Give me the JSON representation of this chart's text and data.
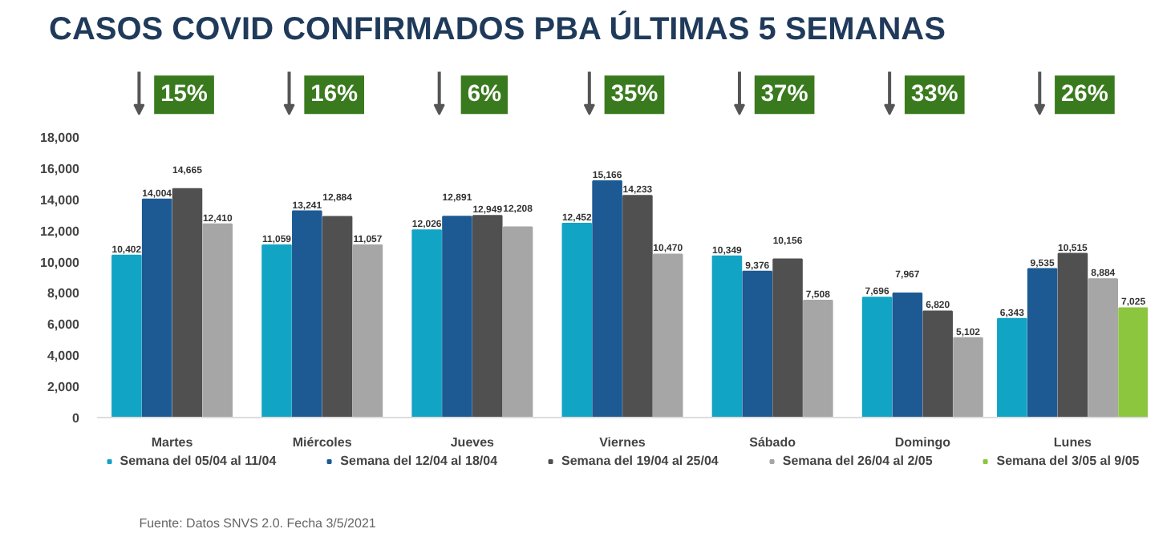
{
  "chart_data": {
    "type": "bar",
    "title": "CASOS COVID CONFIRMADOS PBA ÚLTIMAS 5 SEMANAS",
    "categories": [
      "Martes",
      "Miércoles",
      "Jueves",
      "Viernes",
      "Sábado",
      "Domingo",
      "Lunes"
    ],
    "series": [
      {
        "name": "Semana del 05/04 al 11/04",
        "color": "#12a4c4",
        "values": [
          10402,
          11059,
          12026,
          12452,
          10349,
          7696,
          6343
        ],
        "value_labels": [
          "10,402",
          "11,059",
          "12,026",
          "12,452",
          "10,349",
          "7,696",
          "6,343"
        ]
      },
      {
        "name": "Semana del 12/04 al 18/04",
        "color": "#1d5a94",
        "values": [
          14004,
          13241,
          12891,
          15166,
          9376,
          7967,
          9535
        ],
        "value_labels": [
          "14,004",
          "13,241",
          "12,891",
          "15,166",
          "9,376",
          "7,967",
          "9,535"
        ]
      },
      {
        "name": "Semana del 19/04 al 25/04",
        "color": "#505050",
        "values": [
          14665,
          12884,
          12949,
          14233,
          10156,
          6820,
          10515
        ],
        "value_labels": [
          "14,665",
          "12,884",
          "12,949",
          "14,233",
          "10,156",
          "6,820",
          "10,515"
        ]
      },
      {
        "name": "Semana del 26/04 al 2/05",
        "color": "#a6a6a6",
        "values": [
          12410,
          11057,
          12208,
          10470,
          7508,
          5102,
          8884
        ],
        "value_labels": [
          "12,410",
          "11,057",
          "12,208",
          "10,470",
          "7,508",
          "5,102",
          "8,884"
        ]
      },
      {
        "name": "Semana del 3/05 al 9/05",
        "color": "#8cc63f",
        "values": [
          null,
          null,
          null,
          null,
          null,
          null,
          7025
        ],
        "value_labels": [
          null,
          null,
          null,
          null,
          null,
          null,
          "7,025"
        ]
      }
    ],
    "ylim": [
      0,
      18000
    ],
    "yticks": [
      {
        "value": 0,
        "label": "0"
      },
      {
        "value": 2000,
        "label": "2,000"
      },
      {
        "value": 4000,
        "label": "4,000"
      },
      {
        "value": 6000,
        "label": "6,000"
      },
      {
        "value": 8000,
        "label": "8,000"
      },
      {
        "value": 10000,
        "label": "10,000"
      },
      {
        "value": 12000,
        "label": "12,000"
      },
      {
        "value": 14000,
        "label": "14,000"
      },
      {
        "value": 16000,
        "label": "16,000"
      },
      {
        "value": 18000,
        "label": "18,000"
      }
    ],
    "legend": "bottom",
    "annotations": [
      "15%",
      "16%",
      "6%",
      "35%",
      "37%",
      "33%",
      "26%",
      "Fuente: Datos SNVS 2.0. Fecha 3/5/2021"
    ]
  }
}
